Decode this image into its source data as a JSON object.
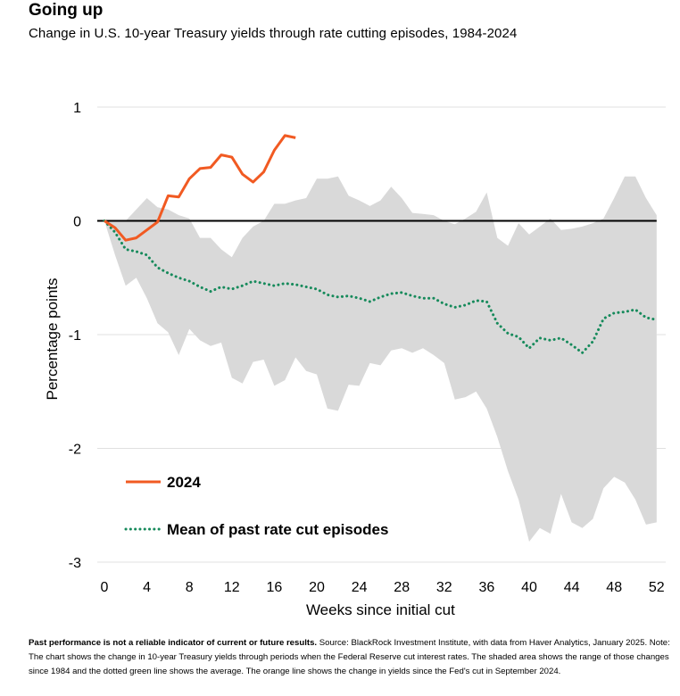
{
  "title": "Going up",
  "subtitle": "Change in U.S. 10-year Treasury yields through rate cutting episodes, 1984-2024",
  "footnote": {
    "bold": "Past performance is not a reliable indicator of current or future results.",
    "text": " Source: BlackRock Investment Institute, with data from Haver Analytics, January 2025. Note: The chart shows the change in 10-year Treasury yields through periods when the Federal Reserve cut interest rates. The shaded area shows the range of those changes since 1984 and the dotted green line shows the average. The orange line shows the change in yields since the Fed's cut in September 2024."
  },
  "chart_data": {
    "type": "line",
    "xlabel": "Weeks since initial cut",
    "ylabel": "Percentage points",
    "xlim": [
      0,
      53
    ],
    "ylim": [
      -3,
      1
    ],
    "x_ticks": [
      0,
      4,
      8,
      12,
      16,
      20,
      24,
      28,
      32,
      36,
      40,
      44,
      48,
      52
    ],
    "y_ticks": [
      1,
      0,
      -1,
      -2,
      -3
    ],
    "grid": "horizontal",
    "legend_position": "bottom-left",
    "colors": {
      "series_2024": "#f15a22",
      "mean": "#168a5b",
      "range": "#d9d9d9",
      "zero_line": "#000000",
      "grid": "#e0e0e0"
    },
    "range_band": {
      "x": [
        0,
        1,
        2,
        3,
        4,
        5,
        6,
        7,
        8,
        9,
        10,
        11,
        12,
        13,
        14,
        15,
        16,
        17,
        18,
        19,
        20,
        21,
        22,
        23,
        24,
        25,
        26,
        27,
        28,
        29,
        30,
        31,
        32,
        33,
        34,
        35,
        36,
        37,
        38,
        39,
        40,
        41,
        42,
        43,
        44,
        45,
        46,
        47,
        48,
        49,
        50,
        51,
        52
      ],
      "upper": [
        0.0,
        0.0,
        0.0,
        0.1,
        0.2,
        0.12,
        0.1,
        0.05,
        0.02,
        -0.15,
        -0.15,
        -0.25,
        -0.32,
        -0.15,
        -0.05,
        0.0,
        0.15,
        0.15,
        0.18,
        0.2,
        0.37,
        0.37,
        0.39,
        0.22,
        0.18,
        0.13,
        0.18,
        0.3,
        0.2,
        0.07,
        0.06,
        0.05,
        0.0,
        -0.03,
        0.02,
        0.08,
        0.25,
        -0.15,
        -0.22,
        -0.02,
        -0.12,
        -0.05,
        0.02,
        -0.08,
        -0.07,
        -0.05,
        -0.02,
        0.02,
        0.2,
        0.39,
        0.39,
        0.2,
        0.05
      ],
      "lower": [
        0.0,
        -0.3,
        -0.57,
        -0.5,
        -0.68,
        -0.9,
        -0.98,
        -1.18,
        -0.95,
        -1.05,
        -1.1,
        -1.07,
        -1.38,
        -1.43,
        -1.24,
        -1.22,
        -1.45,
        -1.4,
        -1.2,
        -1.32,
        -1.35,
        -1.65,
        -1.67,
        -1.44,
        -1.45,
        -1.25,
        -1.27,
        -1.14,
        -1.12,
        -1.16,
        -1.12,
        -1.18,
        -1.25,
        -1.57,
        -1.55,
        -1.5,
        -1.65,
        -1.9,
        -2.2,
        -2.45,
        -2.82,
        -2.7,
        -2.75,
        -2.4,
        -2.65,
        -2.7,
        -2.62,
        -2.35,
        -2.25,
        -2.3,
        -2.45,
        -2.67,
        -2.65
      ]
    },
    "series": [
      {
        "name": "2024",
        "x": [
          0,
          1,
          2,
          3,
          4,
          5,
          6,
          7,
          8,
          9,
          10,
          11,
          12,
          13,
          14,
          15,
          16,
          17,
          18
        ],
        "values": [
          0.0,
          -0.06,
          -0.17,
          -0.15,
          -0.08,
          -0.01,
          0.22,
          0.21,
          0.37,
          0.46,
          0.47,
          0.58,
          0.56,
          0.41,
          0.34,
          0.43,
          0.62,
          0.75,
          0.73
        ]
      },
      {
        "name": "Mean of past rate cut episodes",
        "x": [
          0,
          1,
          2,
          3,
          4,
          5,
          6,
          7,
          8,
          9,
          10,
          11,
          12,
          13,
          14,
          15,
          16,
          17,
          18,
          19,
          20,
          21,
          22,
          23,
          24,
          25,
          26,
          27,
          28,
          29,
          30,
          31,
          32,
          33,
          34,
          35,
          36,
          37,
          38,
          39,
          40,
          41,
          42,
          43,
          44,
          45,
          46,
          47,
          48,
          49,
          50,
          51,
          52
        ],
        "values": [
          0.0,
          -0.1,
          -0.25,
          -0.27,
          -0.3,
          -0.41,
          -0.46,
          -0.5,
          -0.53,
          -0.58,
          -0.62,
          -0.58,
          -0.6,
          -0.57,
          -0.53,
          -0.55,
          -0.57,
          -0.55,
          -0.56,
          -0.58,
          -0.6,
          -0.65,
          -0.67,
          -0.66,
          -0.68,
          -0.71,
          -0.67,
          -0.64,
          -0.63,
          -0.66,
          -0.68,
          -0.68,
          -0.73,
          -0.76,
          -0.74,
          -0.7,
          -0.71,
          -0.9,
          -0.99,
          -1.02,
          -1.12,
          -1.03,
          -1.05,
          -1.03,
          -1.09,
          -1.16,
          -1.06,
          -0.86,
          -0.81,
          -0.8,
          -0.78,
          -0.85,
          -0.87
        ]
      }
    ]
  }
}
